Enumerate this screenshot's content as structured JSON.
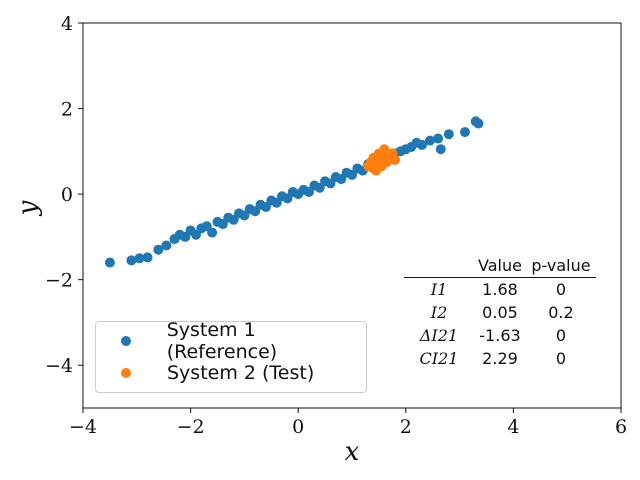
{
  "chart_data": {
    "type": "scatter",
    "xlabel": "x",
    "ylabel": "y",
    "xlim": [
      -4,
      6
    ],
    "ylim": [
      -5,
      4
    ],
    "xticks": [
      "−4",
      "−2",
      "0",
      "2",
      "4",
      "6"
    ],
    "yticks": [
      "4",
      "2",
      "0",
      "−2",
      "−4"
    ],
    "series": [
      {
        "name": "System 1 (Reference)",
        "color": "#1f77b4",
        "points": [
          [
            -3.5,
            -1.6
          ],
          [
            -3.1,
            -1.55
          ],
          [
            -2.95,
            -1.5
          ],
          [
            -2.8,
            -1.48
          ],
          [
            -2.6,
            -1.3
          ],
          [
            -2.45,
            -1.2
          ],
          [
            -2.3,
            -1.05
          ],
          [
            -2.2,
            -0.95
          ],
          [
            -2.1,
            -1.0
          ],
          [
            -2.0,
            -0.85
          ],
          [
            -1.9,
            -0.95
          ],
          [
            -1.8,
            -0.8
          ],
          [
            -1.7,
            -0.75
          ],
          [
            -1.6,
            -0.9
          ],
          [
            -1.5,
            -0.65
          ],
          [
            -1.4,
            -0.7
          ],
          [
            -1.3,
            -0.55
          ],
          [
            -1.2,
            -0.6
          ],
          [
            -1.1,
            -0.45
          ],
          [
            -1.0,
            -0.5
          ],
          [
            -0.9,
            -0.35
          ],
          [
            -0.8,
            -0.4
          ],
          [
            -0.7,
            -0.25
          ],
          [
            -0.6,
            -0.3
          ],
          [
            -0.5,
            -0.15
          ],
          [
            -0.4,
            -0.2
          ],
          [
            -0.3,
            -0.05
          ],
          [
            -0.2,
            -0.1
          ],
          [
            -0.1,
            0.05
          ],
          [
            0.0,
            0.0
          ],
          [
            0.1,
            0.1
          ],
          [
            0.2,
            0.05
          ],
          [
            0.3,
            0.2
          ],
          [
            0.4,
            0.15
          ],
          [
            0.5,
            0.3
          ],
          [
            0.6,
            0.25
          ],
          [
            0.7,
            0.4
          ],
          [
            0.8,
            0.35
          ],
          [
            0.9,
            0.5
          ],
          [
            1.0,
            0.45
          ],
          [
            1.1,
            0.6
          ],
          [
            1.2,
            0.55
          ],
          [
            1.3,
            0.7
          ],
          [
            1.4,
            0.65
          ],
          [
            1.5,
            0.85
          ],
          [
            1.6,
            0.8
          ],
          [
            1.7,
            0.9
          ],
          [
            1.8,
            0.95
          ],
          [
            1.9,
            1.0
          ],
          [
            2.0,
            1.05
          ],
          [
            2.1,
            1.1
          ],
          [
            2.2,
            1.2
          ],
          [
            2.3,
            1.15
          ],
          [
            2.45,
            1.25
          ],
          [
            2.6,
            1.3
          ],
          [
            2.65,
            1.05
          ],
          [
            2.8,
            1.4
          ],
          [
            3.1,
            1.45
          ],
          [
            3.3,
            1.7
          ],
          [
            3.35,
            1.65
          ]
        ]
      },
      {
        "name": "System 2 (Test)",
        "color": "#ff7f0e",
        "points": [
          [
            1.3,
            0.65
          ],
          [
            1.35,
            0.75
          ],
          [
            1.4,
            0.6
          ],
          [
            1.4,
            0.85
          ],
          [
            1.45,
            0.7
          ],
          [
            1.5,
            0.95
          ],
          [
            1.5,
            0.8
          ],
          [
            1.55,
            0.65
          ],
          [
            1.6,
            0.9
          ],
          [
            1.6,
            1.05
          ],
          [
            1.65,
            0.75
          ],
          [
            1.7,
            0.85
          ],
          [
            1.75,
            0.95
          ],
          [
            1.8,
            0.8
          ],
          [
            1.45,
            0.55
          ]
        ]
      }
    ],
    "legend_position": "lower-left"
  },
  "stats_table": {
    "headers": [
      "Value",
      "p-value"
    ],
    "rows": [
      {
        "label": "I1",
        "value": "1.68",
        "p": "0"
      },
      {
        "label": "I2",
        "value": "0.05",
        "p": "0.2"
      },
      {
        "label": "ΔI21",
        "value": "-1.63",
        "p": "0"
      },
      {
        "label": "CI21",
        "value": "2.29",
        "p": "0"
      }
    ]
  }
}
